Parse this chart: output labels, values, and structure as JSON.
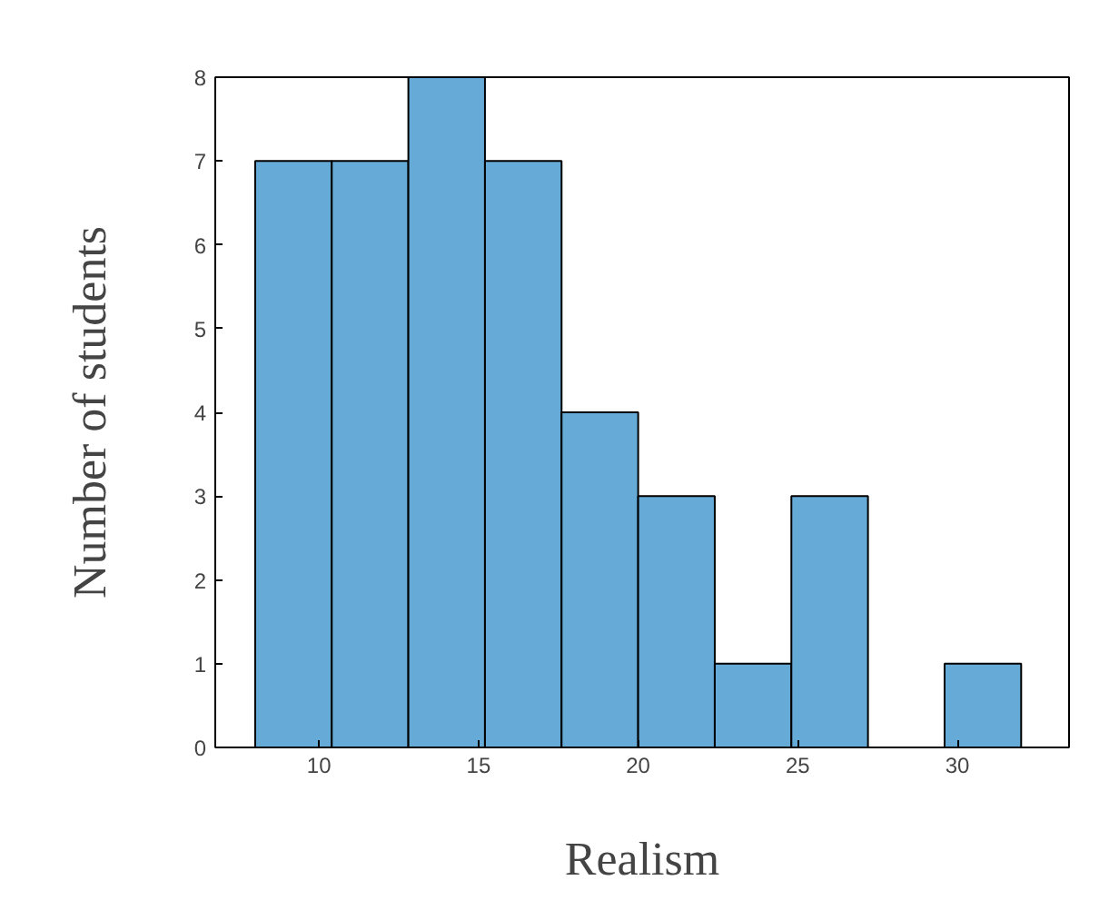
{
  "chart_data": {
    "type": "histogram",
    "xlabel": "Realism",
    "ylabel": "Number of students",
    "bins": [
      8,
      10.4,
      12.8,
      15.2,
      17.6,
      20,
      22.4,
      24.8,
      27.2,
      29.6,
      32
    ],
    "values": [
      7,
      7,
      8,
      7,
      4,
      3,
      1,
      3,
      0,
      1
    ],
    "color": "#66aad7",
    "xlim": [
      6.75,
      33.5
    ],
    "ylim": [
      0,
      8
    ],
    "xticks": [
      10,
      15,
      20,
      25,
      30
    ],
    "yticks": [
      0,
      1,
      2,
      3,
      4,
      5,
      6,
      7,
      8
    ],
    "grid": false
  }
}
